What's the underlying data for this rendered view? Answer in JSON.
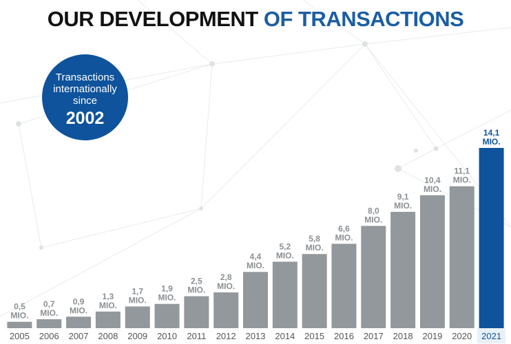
{
  "header": {
    "title_part1": "OUR DEVELOPMENT",
    "title_part2": "OF TRANSACTIONS"
  },
  "badge": {
    "line1": "Transactions",
    "line2": "internationally",
    "line3": "since",
    "year": "2002"
  },
  "colors": {
    "bar": "#93989c",
    "highlight": "#0e539b",
    "label": "#8a8f93",
    "highlight_label": "#0e539b",
    "axis_label": "#555555"
  },
  "chart_data": {
    "type": "bar",
    "title": "OUR DEVELOPMENT OF TRANSACTIONS",
    "xlabel": "",
    "ylabel": "",
    "unit": "MIO.",
    "categories": [
      "2005",
      "2006",
      "2007",
      "2008",
      "2009",
      "2010",
      "2011",
      "2012",
      "2013",
      "2014",
      "2015",
      "2016",
      "2017",
      "2018",
      "2019",
      "2020",
      "2021"
    ],
    "values": [
      0.5,
      0.7,
      0.9,
      1.3,
      1.7,
      1.9,
      2.5,
      2.8,
      4.4,
      5.2,
      5.8,
      6.6,
      8.0,
      9.1,
      10.4,
      11.1,
      14.1
    ],
    "value_labels": [
      "0,5",
      "0,7",
      "0,9",
      "1,3",
      "1,7",
      "1,9",
      "2,5",
      "2,8",
      "4,4",
      "5,2",
      "5,8",
      "6,6",
      "8,0",
      "9,1",
      "10,4",
      "11,1",
      "14,1"
    ],
    "highlight_index": 16,
    "ylim": [
      0,
      14.1
    ],
    "grid": false
  }
}
